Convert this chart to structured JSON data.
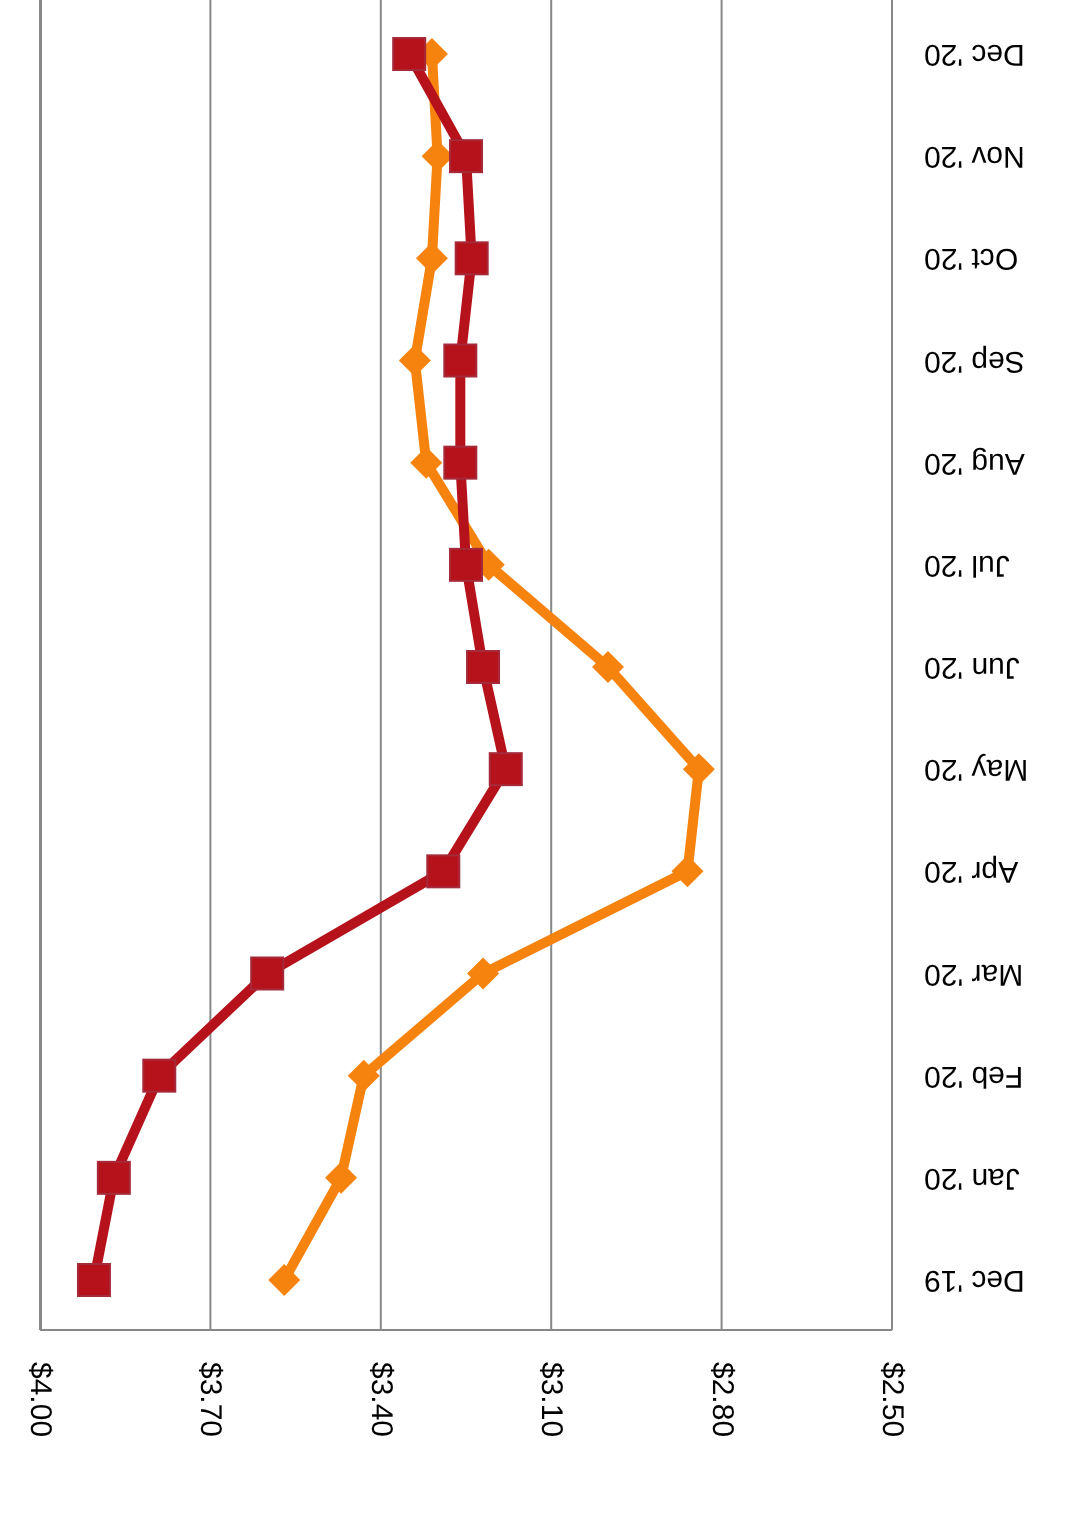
{
  "chart_data": {
    "type": "line",
    "orientation": "horizontal",
    "categories": [
      "Dec '20",
      "Nov '20",
      "Oct '20",
      "Sep '20",
      "Aug '20",
      "Jul '20",
      "Jun '20",
      "May '20",
      "Apr '20",
      "Mar '20",
      "Feb '20",
      "Jan '20",
      "Dec '19"
    ],
    "series": [
      {
        "color": "#f7830f",
        "marker": "diamond",
        "values": [
          3.31,
          3.3,
          3.31,
          3.34,
          3.32,
          3.21,
          3.0,
          2.84,
          2.86,
          3.22,
          3.43,
          3.47,
          3.57
        ]
      },
      {
        "color": "#b5121b",
        "marker": "square",
        "values": [
          3.35,
          3.25,
          3.24,
          3.26,
          3.26,
          3.25,
          3.22,
          3.18,
          3.29,
          3.6,
          3.79,
          3.87,
          3.905
        ]
      }
    ],
    "xlim": [
      4.0,
      2.5
    ],
    "xticks": [
      {
        "value": 4.0,
        "label": "$4.00"
      },
      {
        "value": 3.7,
        "label": "$3.70"
      },
      {
        "value": 3.4,
        "label": "$3.40"
      },
      {
        "value": 3.1,
        "label": "$3.10"
      },
      {
        "value": 2.8,
        "label": "$2.80"
      },
      {
        "value": 2.5,
        "label": "$2.50"
      }
    ],
    "grid": "x",
    "line_style": "solid"
  }
}
